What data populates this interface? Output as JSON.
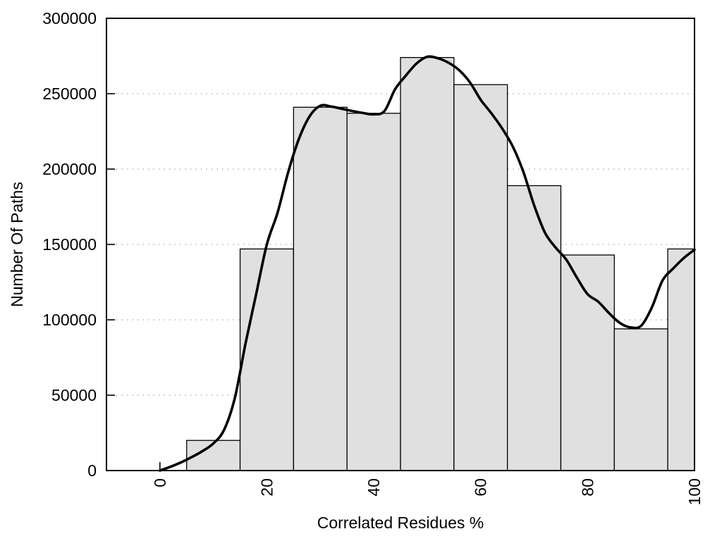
{
  "chart_data": {
    "type": "bar",
    "subtype": "histogram-with-smoothed-curve",
    "title": "",
    "xlabel": "Correlated Residues %",
    "ylabel": "Number Of Paths",
    "xlim": [
      -10,
      100
    ],
    "ylim": [
      0,
      300000
    ],
    "xticks": [
      0,
      20,
      40,
      60,
      80,
      100
    ],
    "yticks": [
      0,
      50000,
      100000,
      150000,
      200000,
      250000,
      300000
    ],
    "grid": {
      "horizontal": true,
      "style": "dotted",
      "color": "#b5b5b5",
      "at": [
        50000,
        100000,
        150000,
        200000,
        250000
      ]
    },
    "legend": null,
    "bars": {
      "bin_edges": [
        5,
        15,
        25,
        35,
        45,
        55,
        65,
        75,
        85,
        95,
        105
      ],
      "values": [
        20000,
        147000,
        241000,
        237000,
        274000,
        256000,
        189000,
        143000,
        94000,
        147000
      ],
      "fill": "#e0e0e0",
      "stroke": "#000000"
    },
    "curve": {
      "name": "smoothed-frequency-curve",
      "color": "#000000",
      "width": 3.6,
      "x": [
        0,
        2,
        4,
        6,
        8,
        10,
        12,
        14,
        16,
        18,
        20,
        22,
        24,
        26,
        28,
        30,
        32,
        34,
        36,
        38,
        40,
        42,
        44,
        46,
        48,
        50,
        52,
        54,
        56,
        58,
        60,
        62,
        64,
        66,
        68,
        70,
        72,
        74,
        76,
        78,
        80,
        82,
        84,
        86,
        88,
        90,
        92,
        94,
        96,
        98,
        100
      ],
      "y": [
        0,
        2500,
        5500,
        9000,
        13000,
        18000,
        27000,
        48000,
        84000,
        117000,
        150000,
        171000,
        198000,
        220000,
        235000,
        242000,
        241500,
        240000,
        238500,
        237200,
        236300,
        238500,
        253000,
        262000,
        270000,
        274500,
        273500,
        270500,
        265500,
        257500,
        246000,
        237000,
        227000,
        215000,
        198000,
        176000,
        158000,
        148000,
        140000,
        128000,
        117000,
        112000,
        104500,
        98000,
        95000,
        96000,
        108000,
        126000,
        134000,
        141000,
        146500
      ]
    },
    "axis_color": "#000000",
    "tick_length": 12
  }
}
